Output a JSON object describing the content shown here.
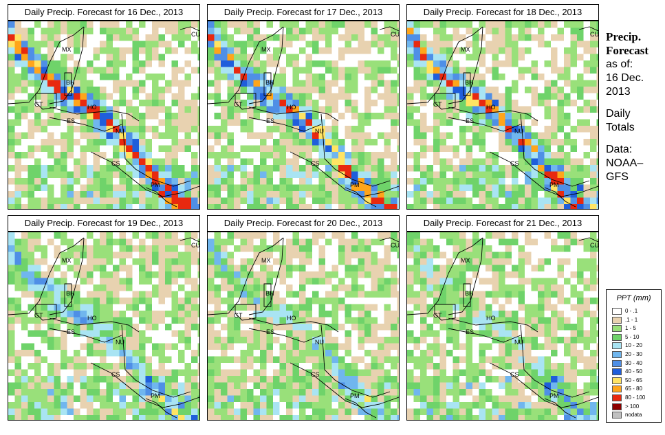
{
  "panels": [
    {
      "title": "Daily Precip. Forecast for  16 Dec., 2013",
      "seed": 11,
      "wet": 0.85
    },
    {
      "title": "Daily Precip. Forecast for  17 Dec., 2013",
      "seed": 23,
      "wet": 0.8
    },
    {
      "title": "Daily Precip. Forecast for  18 Dec., 2013",
      "seed": 37,
      "wet": 0.75
    },
    {
      "title": "Daily Precip. Forecast for  19 Dec., 2013",
      "seed": 41,
      "wet": 0.45
    },
    {
      "title": "Daily Precip. Forecast for  20 Dec., 2013",
      "seed": 53,
      "wet": 0.3
    },
    {
      "title": "Daily Precip. Forecast for  21 Dec., 2013",
      "seed": 67,
      "wet": 0.3
    }
  ],
  "country_labels": [
    "CU",
    "MX",
    "BH",
    "GT",
    "HO",
    "ES",
    "NU",
    "CS",
    "PM"
  ],
  "side": {
    "line1": "Precip.",
    "line2": "Forecast",
    "line3": "as of:",
    "line4": "16 Dec.",
    "line5": "2013",
    "line6": "Daily",
    "line7": "Totals",
    "line8": "Data:",
    "line9": "NOAA–",
    "line10": "GFS"
  },
  "legend": {
    "title": "PPT (mm)",
    "items": [
      {
        "label": "0 - .1",
        "color": "#ffffff"
      },
      {
        "label": ".1 - 1",
        "color": "#e8d2b0"
      },
      {
        "label": "1 - 5",
        "color": "#99e07a"
      },
      {
        "label": "5 - 10",
        "color": "#6fd36a"
      },
      {
        "label": "10 - 20",
        "color": "#a9e4f3"
      },
      {
        "label": "20 - 30",
        "color": "#70b6ee"
      },
      {
        "label": "30 - 40",
        "color": "#4f8fe6"
      },
      {
        "label": "40 - 50",
        "color": "#1f5edb"
      },
      {
        "label": "50 - 65",
        "color": "#ffe463"
      },
      {
        "label": "65 - 80",
        "color": "#ffa51a"
      },
      {
        "label": "80 - 100",
        "color": "#e8290f"
      },
      {
        "label": "> 100",
        "color": "#8d0000"
      },
      {
        "label": "nodata",
        "color": "#c0c0c0"
      }
    ]
  }
}
